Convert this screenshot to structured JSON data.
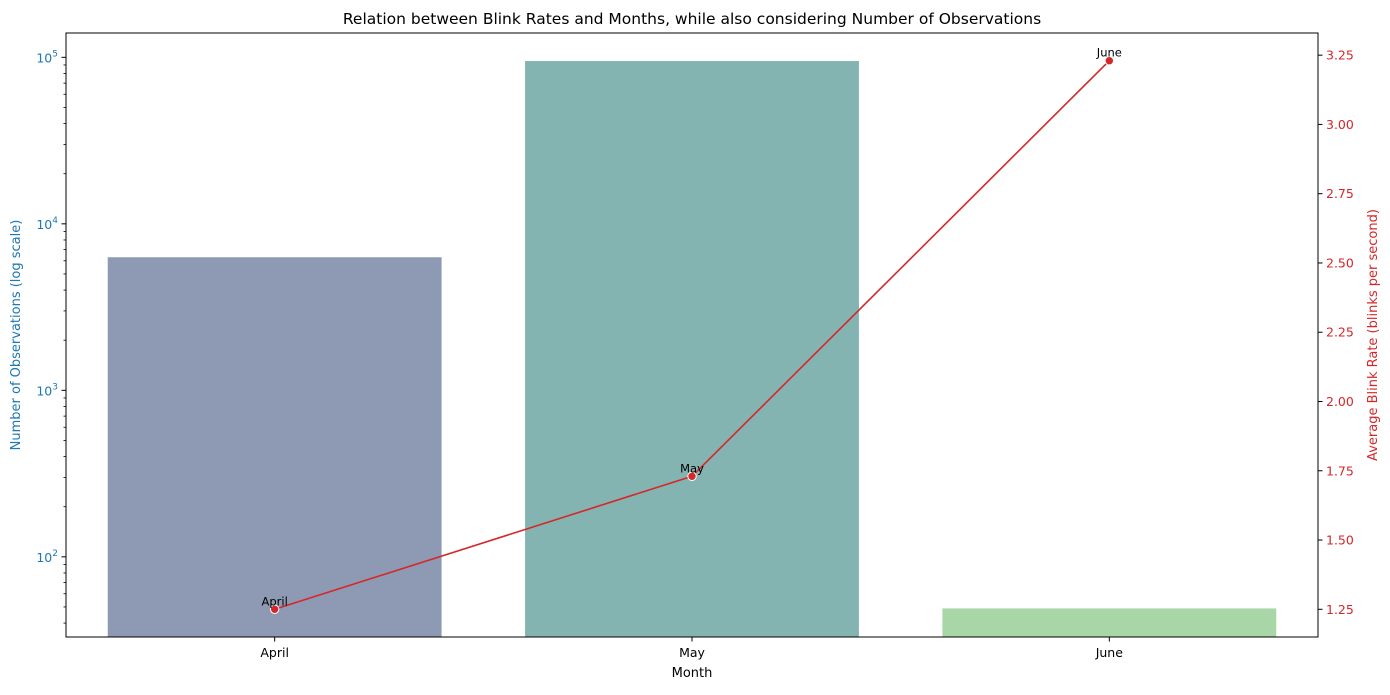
{
  "chart_data": {
    "type": "bar",
    "title": "Relation between Blink Rates and Months, while also considering Number of Observations",
    "xlabel": "Month",
    "categories": [
      "April",
      "May",
      "June"
    ],
    "bars": {
      "ylabel": "Number of Observations (log scale)",
      "scale": "log",
      "ylim": [
        33,
        140000
      ],
      "values": [
        6300,
        95000,
        49
      ],
      "colors": [
        "#8e99b4",
        "#83b4b2",
        "#a8d6a6"
      ],
      "yticks": [
        {
          "base": "10",
          "exp": "2",
          "value": 100
        },
        {
          "base": "10",
          "exp": "3",
          "value": 1000
        },
        {
          "base": "10",
          "exp": "4",
          "value": 10000
        },
        {
          "base": "10",
          "exp": "5",
          "value": 100000
        }
      ]
    },
    "line": {
      "ylabel": "Average Blink Rate (blinks per second)",
      "ylim": [
        1.15,
        3.33
      ],
      "values": [
        1.25,
        1.73,
        3.23
      ],
      "point_labels": [
        "April",
        "May",
        "June"
      ],
      "yticks": [
        "1.25",
        "1.50",
        "1.75",
        "2.00",
        "2.25",
        "2.50",
        "2.75",
        "3.00",
        "3.25"
      ]
    },
    "colors": {
      "left_axis": "#1f77b4",
      "right_axis": "#d62728",
      "line": "#d62728"
    },
    "grid": false
  }
}
